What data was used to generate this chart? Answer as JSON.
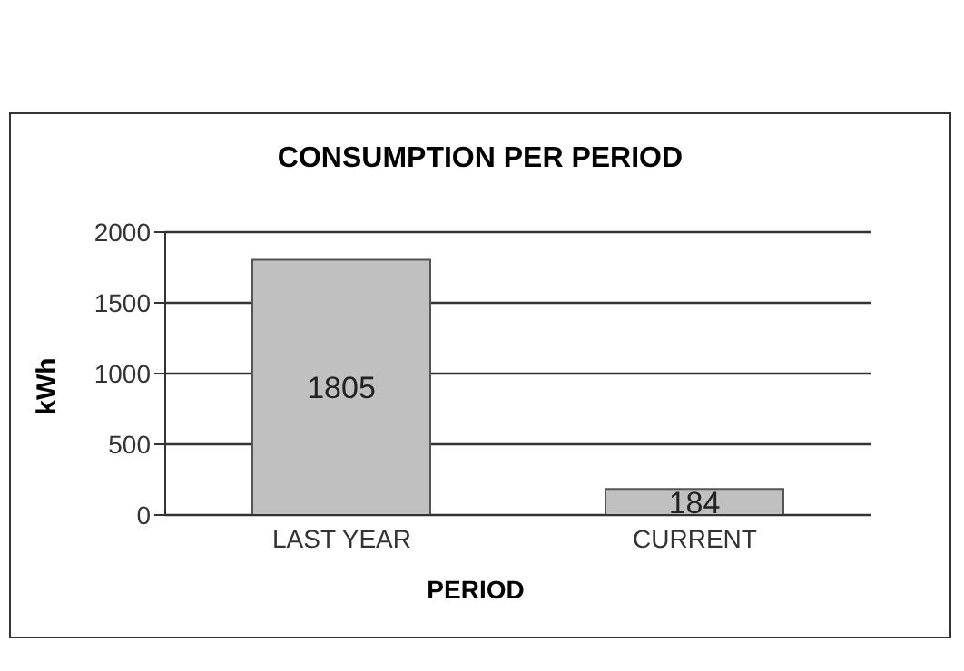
{
  "chart_data": {
    "type": "bar",
    "title": "CONSUMPTION PER PERIOD",
    "xlabel": "PERIOD",
    "ylabel": "kWh",
    "categories": [
      "LAST YEAR",
      "CURRENT"
    ],
    "values": [
      1805,
      184
    ],
    "color": "#c0c0c0",
    "ylim": [
      0,
      2000
    ],
    "yticks": [
      0,
      500,
      1000,
      1500,
      2000
    ],
    "grid": "y",
    "data_labels": true
  }
}
